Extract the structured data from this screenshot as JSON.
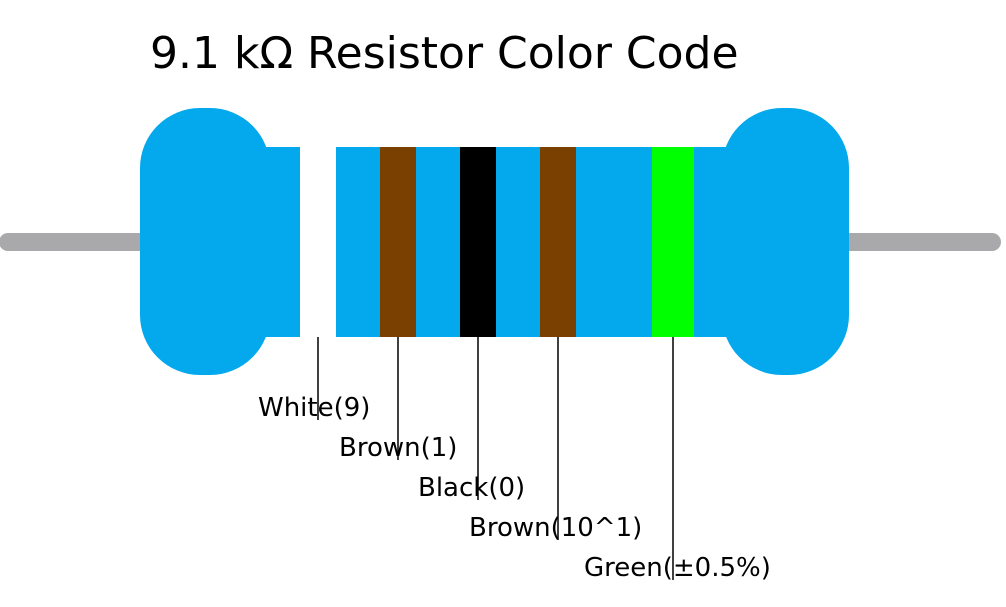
{
  "title": "9.1 kΩ Resistor Color Code",
  "colors": {
    "body": "#03A9EC",
    "lead": "#A9A9AB",
    "leader_line": "#000000"
  },
  "bands": [
    {
      "name": "White",
      "color": "#FFFFFF",
      "label": "White(9)"
    },
    {
      "name": "Brown",
      "color": "#7A4002",
      "label": "Brown(1)"
    },
    {
      "name": "Black",
      "color": "#000000",
      "label": "Black(0)"
    },
    {
      "name": "Brown",
      "color": "#7A4002",
      "label": "Brown(10^1)"
    },
    {
      "name": "Green",
      "color": "#00FF00",
      "label": "Green(±0.5%)"
    }
  ]
}
